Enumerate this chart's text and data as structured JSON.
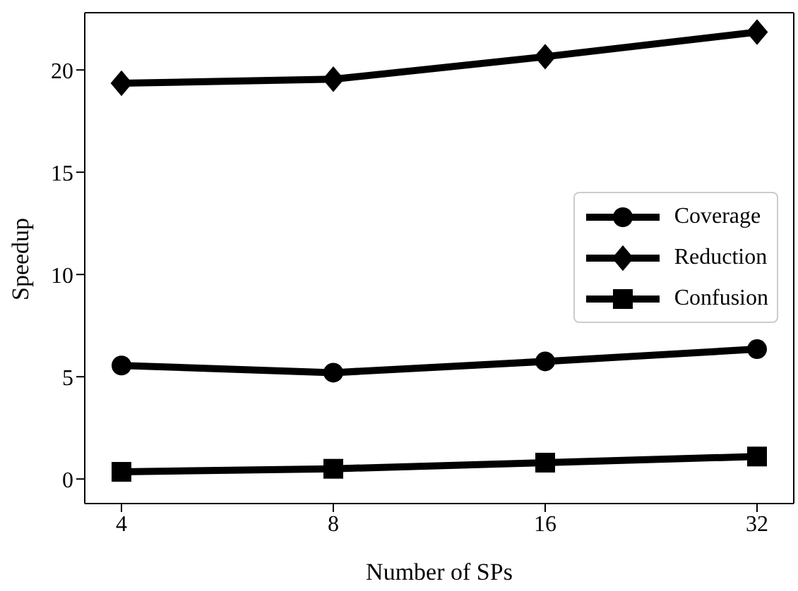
{
  "chart_data": {
    "type": "line",
    "xlabel": "Number of SPs",
    "ylabel": "Speedup",
    "categories": [
      "4",
      "8",
      "16",
      "32"
    ],
    "ylim": [
      -1.2,
      22.8
    ],
    "yticks": [
      0,
      5,
      10,
      15,
      20
    ],
    "grid": false,
    "legend": "right",
    "line_style": "solid",
    "series": [
      {
        "name": "Coverage",
        "color": "#000000",
        "marker": "circle",
        "values": [
          5.55,
          5.2,
          5.75,
          6.35
        ]
      },
      {
        "name": "Reduction",
        "color": "#000000",
        "marker": "diamond",
        "values": [
          19.35,
          19.55,
          20.65,
          21.85
        ]
      },
      {
        "name": "Confusion",
        "color": "#000000",
        "marker": "square",
        "values": [
          0.35,
          0.5,
          0.8,
          1.1
        ]
      }
    ]
  }
}
